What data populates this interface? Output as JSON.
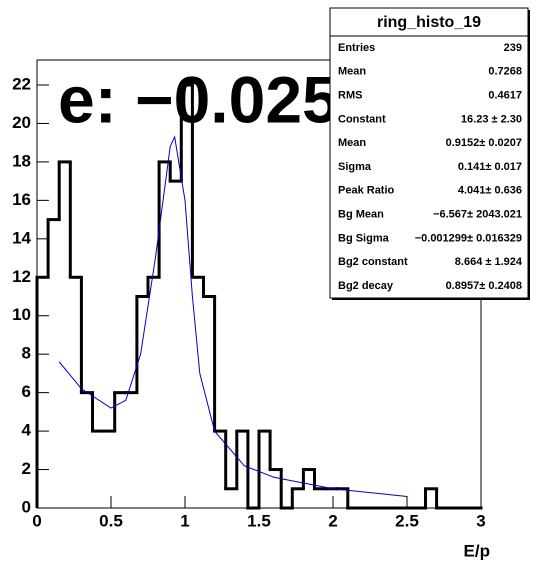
{
  "chart_data": {
    "type": "histogram",
    "title": "ring_histo_19",
    "annotation": "e: −0.025",
    "x_label": "E/p",
    "bins": [
      0,
      0.075,
      0.15,
      0.225,
      0.3,
      0.375,
      0.45,
      0.525,
      0.6,
      0.675,
      0.75,
      0.825,
      0.9,
      0.975,
      1.05,
      1.125,
      1.2,
      1.275,
      1.35,
      1.425,
      1.5,
      1.575,
      1.65,
      1.725,
      1.8,
      1.875,
      1.95,
      2.025,
      2.1,
      2.175,
      2.25,
      2.325,
      2.4,
      2.475,
      2.55,
      2.625,
      2.7,
      2.775,
      2.85,
      2.925,
      3
    ],
    "values": [
      12,
      15,
      18,
      12,
      6,
      4,
      4,
      6,
      6,
      11,
      12,
      18,
      17,
      22,
      12,
      11,
      4,
      1,
      4,
      0,
      4,
      2,
      0,
      1,
      2,
      1,
      1,
      1,
      0,
      0,
      0,
      0,
      0,
      0,
      0,
      1,
      0,
      0,
      0,
      0
    ],
    "color": "#000000",
    "fit": {
      "color": "#0000cc",
      "x": [
        0.15,
        0.3,
        0.5,
        0.6,
        0.7,
        0.8,
        0.9,
        0.93,
        1.0,
        1.05,
        1.1,
        1.2,
        1.4,
        1.6,
        2.0,
        2.5
      ],
      "y": [
        7.6,
        6.2,
        5.2,
        5.6,
        8,
        13,
        18.8,
        19.3,
        16,
        11,
        7,
        4,
        2.2,
        1.6,
        1.0,
        0.6
      ]
    },
    "xlim": [
      0,
      3
    ],
    "xticks": [
      0,
      0.5,
      1,
      1.5,
      2,
      2.5,
      3
    ],
    "ylim": [
      0,
      23.3
    ],
    "yticks": [
      0,
      2,
      4,
      6,
      8,
      10,
      12,
      14,
      16,
      18,
      20,
      22
    ],
    "stats": [
      [
        "Entries",
        "239"
      ],
      [
        "Mean",
        "0.7268"
      ],
      [
        "RMS",
        "0.4617"
      ],
      [
        "Constant",
        "16.23 ± 2.30"
      ],
      [
        "Mean",
        "0.9152± 0.0207"
      ],
      [
        "Sigma",
        "0.141± 0.017"
      ],
      [
        "Peak Ratio",
        "4.041± 0.636"
      ],
      [
        "Bg Mean",
        "−6.567± 2043.021"
      ],
      [
        "Bg Sigma",
        "−0.001299± 0.016329"
      ],
      [
        "Bg2 constant",
        "8.664 ± 1.924"
      ],
      [
        "Bg2 decay",
        "0.8957± 0.2408"
      ]
    ]
  }
}
